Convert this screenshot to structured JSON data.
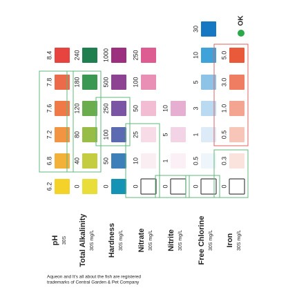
{
  "legend": {
    "ok": "OK"
  },
  "strips": [
    {
      "name": "pH",
      "sub": "30S",
      "swatches": [
        {
          "label": "6.2",
          "color": "#f5d22a"
        },
        {
          "label": "6.8",
          "color": "#f4b13a"
        },
        {
          "label": "7.2",
          "color": "#f39443"
        },
        {
          "label": "7.6",
          "color": "#ef7a48"
        },
        {
          "label": "7.8",
          "color": "#ec6a4a"
        },
        {
          "label": "8.4",
          "color": "#e8443f"
        }
      ]
    },
    {
      "name": "Total Alkalinity",
      "sub": "30S  mg/L",
      "swatches": [
        {
          "label": "0",
          "color": "#e9dd3a"
        },
        {
          "label": "40",
          "color": "#c4cd40"
        },
        {
          "label": "80",
          "color": "#97bd46"
        },
        {
          "label": "120",
          "color": "#6aac4e"
        },
        {
          "label": "180",
          "color": "#3b9852"
        },
        {
          "label": "240",
          "color": "#1f7f4f"
        }
      ]
    },
    {
      "name": "Hardness",
      "sub": "30S  mg/L",
      "swatches": [
        {
          "label": "0",
          "color": "#1593b5"
        },
        {
          "label": "50",
          "color": "#3d80b9"
        },
        {
          "label": "100",
          "color": "#5c6bb1"
        },
        {
          "label": "250",
          "color": "#7a55a3"
        },
        {
          "label": "500",
          "color": "#8d4391"
        },
        {
          "label": "1000",
          "color": "#9c2f7e"
        }
      ]
    },
    {
      "name": "Nitrate",
      "sub": "30S  mg/L",
      "swatches": [
        {
          "label": "0",
          "color": "#ffffff"
        },
        {
          "label": "10",
          "color": "#fbeef3"
        },
        {
          "label": "25",
          "color": "#f7dbe7"
        },
        {
          "label": "50",
          "color": "#f2bcd3"
        },
        {
          "label": "100",
          "color": "#e98fb5"
        },
        {
          "label": "250",
          "color": "#dd5c92"
        }
      ]
    },
    {
      "name": "Nitrite",
      "sub": "30S  mg/L",
      "swatches": [
        {
          "label": "0",
          "color": "#ffffff"
        },
        {
          "label": "1",
          "color": "#fbf0f6"
        },
        {
          "label": "5",
          "color": "#f3d4e6"
        },
        {
          "label": "10",
          "color": "#e6aed0"
        }
      ]
    },
    {
      "name": "Free Chlorine",
      "sub": "30S  mg/L",
      "swatches": [
        {
          "label": "0",
          "color": "#ffffff"
        },
        {
          "label": "0.5",
          "color": "#eef5fb"
        },
        {
          "label": "1",
          "color": "#dcebf7"
        },
        {
          "label": "3",
          "color": "#b9daf0"
        },
        {
          "label": "5",
          "color": "#8cc3e6"
        },
        {
          "label": "10",
          "color": "#3fa2d9"
        },
        {
          "label": "30",
          "color": "#1677c2"
        }
      ]
    },
    {
      "name": "Iron",
      "sub": "30S  mg/L",
      "swatches": [
        {
          "label": "0",
          "color": "#ffffff"
        },
        {
          "label": "0.3",
          "color": "#fbe3dd"
        },
        {
          "label": "0.5",
          "color": "#f7c6b9"
        },
        {
          "label": "1.0",
          "color": "#f3a591"
        },
        {
          "label": "3.0",
          "color": "#ee7d62"
        },
        {
          "label": "5.0",
          "color": "#e85a3a"
        }
      ]
    }
  ],
  "footer": [
    "Aqueon and It's all about the fish are registered",
    "trademarks of Central Garden & Pet Company"
  ]
}
